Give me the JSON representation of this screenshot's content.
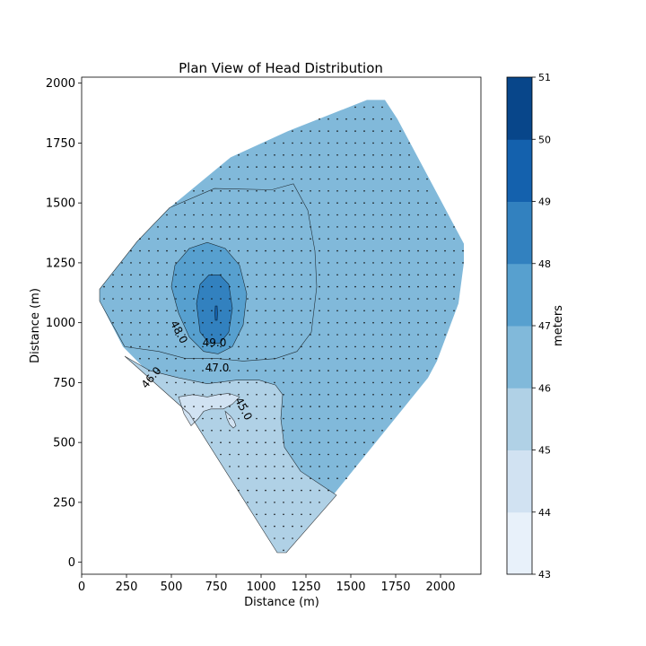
{
  "chart_data": {
    "type": "contour",
    "title": "Plan View of Head Distribution",
    "xlabel": "Distance (m)",
    "ylabel": "Distance (m)",
    "xlim": [
      0,
      2225
    ],
    "ylim": [
      -50,
      2025
    ],
    "xticks": [
      0,
      250,
      500,
      750,
      1000,
      1250,
      1500,
      1750,
      2000
    ],
    "yticks": [
      0,
      250,
      500,
      750,
      1000,
      1250,
      1500,
      1750,
      2000
    ],
    "colorbar": {
      "label": "meters",
      "levels": [
        43,
        44,
        45,
        46,
        47,
        48,
        49,
        50,
        51
      ],
      "colors": [
        "#e8f1fa",
        "#d1e2f2",
        "#b0d1e6",
        "#81b9da",
        "#57a0cf",
        "#3281bf",
        "#1461ad",
        "#08468a"
      ]
    },
    "contour_labels": [
      {
        "text": "48.0",
        "x": 540,
        "y": 960,
        "rotation": 62
      },
      {
        "text": "49.0",
        "x": 740,
        "y": 915,
        "rotation": 0
      },
      {
        "text": "47.0",
        "x": 755,
        "y": 810,
        "rotation": 0
      },
      {
        "text": "46.0",
        "x": 390,
        "y": 770,
        "rotation": -50
      },
      {
        "text": "45.0",
        "x": 900,
        "y": 640,
        "rotation": 62
      }
    ],
    "domain_boundary": [
      [
        1590,
        1930
      ],
      [
        1690,
        1930
      ],
      [
        1760,
        1850
      ],
      [
        2130,
        1330
      ],
      [
        2130,
        1250
      ],
      [
        2100,
        1080
      ],
      [
        1980,
        840
      ],
      [
        1930,
        770
      ],
      [
        1390,
        270
      ],
      [
        1140,
        40
      ],
      [
        1090,
        40
      ],
      [
        600,
        620
      ],
      [
        230,
        900
      ],
      [
        100,
        1090
      ],
      [
        100,
        1140
      ],
      [
        310,
        1340
      ],
      [
        490,
        1480
      ],
      [
        830,
        1690
      ],
      [
        1150,
        1800
      ]
    ],
    "regions": [
      {
        "level": 45,
        "points": [
          [
            240,
            860
          ],
          [
            380,
            800
          ],
          [
            540,
            770
          ],
          [
            700,
            745
          ],
          [
            860,
            760
          ],
          [
            990,
            760
          ],
          [
            1080,
            740
          ],
          [
            1120,
            700
          ],
          [
            1110,
            600
          ],
          [
            1130,
            480
          ],
          [
            1220,
            380
          ],
          [
            1340,
            320
          ],
          [
            1420,
            280
          ],
          [
            1140,
            40
          ],
          [
            1090,
            40
          ],
          [
            600,
            620
          ]
        ]
      },
      {
        "level": 44,
        "points": [
          [
            540,
            690
          ],
          [
            620,
            700
          ],
          [
            700,
            690
          ],
          [
            760,
            700
          ],
          [
            820,
            705
          ],
          [
            880,
            690
          ],
          [
            840,
            660
          ],
          [
            790,
            640
          ],
          [
            720,
            640
          ],
          [
            680,
            630
          ],
          [
            650,
            600
          ],
          [
            610,
            570
          ],
          [
            570,
            620
          ]
        ]
      },
      {
        "level": 44,
        "points": [
          [
            800,
            630
          ],
          [
            830,
            610
          ],
          [
            850,
            590
          ],
          [
            860,
            570
          ],
          [
            845,
            560
          ],
          [
            825,
            575
          ],
          [
            810,
            600
          ]
        ]
      },
      {
        "level": 46,
        "points": [
          [
            100,
            1140
          ],
          [
            310,
            1340
          ],
          [
            490,
            1480
          ],
          [
            740,
            1560
          ],
          [
            1060,
            1555
          ],
          [
            1180,
            1580
          ],
          [
            1260,
            1470
          ],
          [
            1300,
            1300
          ],
          [
            1310,
            1150
          ],
          [
            1280,
            960
          ],
          [
            1200,
            880
          ],
          [
            1080,
            850
          ],
          [
            900,
            840
          ],
          [
            760,
            850
          ],
          [
            580,
            850
          ],
          [
            430,
            880
          ],
          [
            240,
            900
          ],
          [
            100,
            1090
          ]
        ]
      },
      {
        "level": 47,
        "points": [
          [
            500,
            1150
          ],
          [
            520,
            1240
          ],
          [
            600,
            1310
          ],
          [
            700,
            1335
          ],
          [
            800,
            1310
          ],
          [
            880,
            1240
          ],
          [
            920,
            1120
          ],
          [
            900,
            990
          ],
          [
            840,
            900
          ],
          [
            760,
            870
          ],
          [
            680,
            880
          ],
          [
            600,
            940
          ],
          [
            540,
            1040
          ]
        ]
      },
      {
        "level": 48,
        "points": [
          [
            640,
            1080
          ],
          [
            660,
            1160
          ],
          [
            710,
            1200
          ],
          [
            770,
            1200
          ],
          [
            820,
            1160
          ],
          [
            840,
            1060
          ],
          [
            820,
            960
          ],
          [
            770,
            915
          ],
          [
            710,
            915
          ],
          [
            660,
            960
          ]
        ]
      },
      {
        "level": 49,
        "points": [
          [
            745,
            1010
          ],
          [
            755,
            1010
          ],
          [
            757,
            1040
          ],
          [
            755,
            1070
          ],
          [
            745,
            1070
          ],
          [
            743,
            1040
          ]
        ]
      }
    ]
  }
}
